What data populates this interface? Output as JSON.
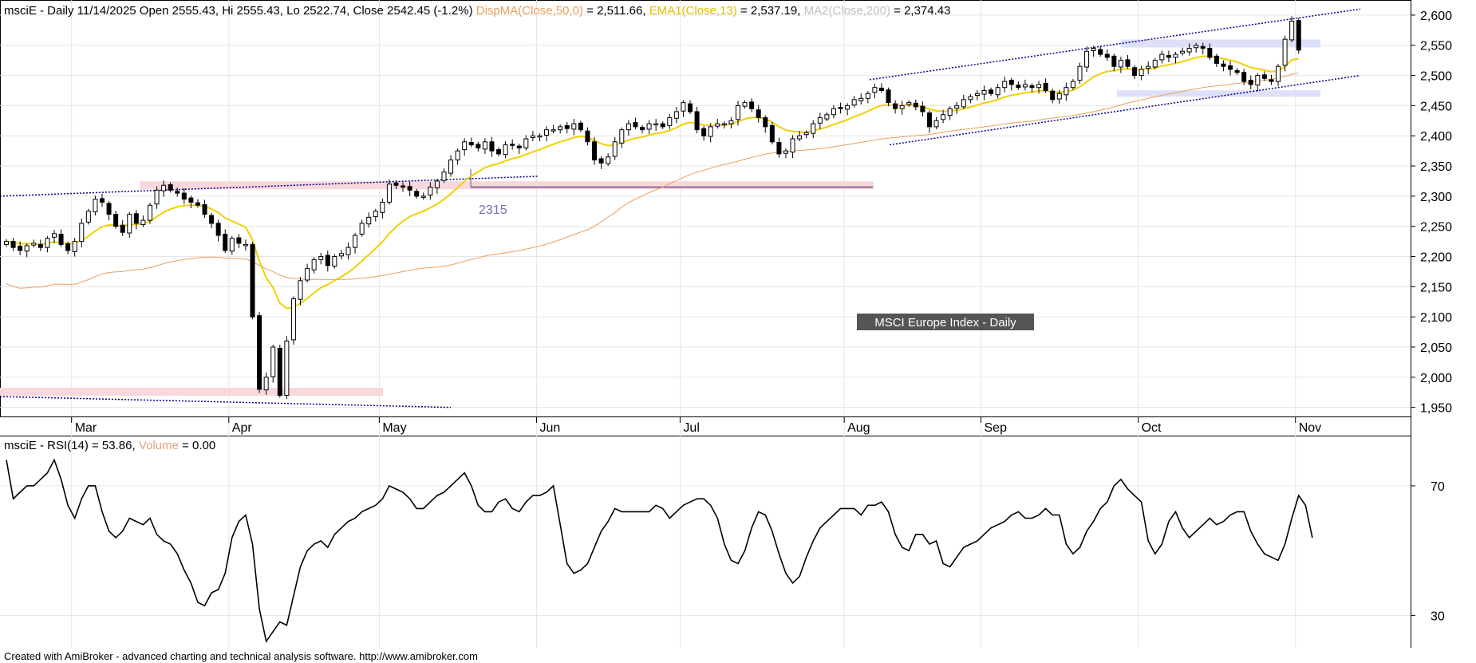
{
  "header": {
    "prefix": "msciE - Daily 11/14/2025 Open 2555.43, Hi 2555.43, Lo 2522.74, Close 2542.45 (-1.2%)",
    "ind1_name": "DispMA(Close,50,0)",
    "ind1_value": " = 2,511.66,",
    "ind2_name": "EMA1(Close,13)",
    "ind2_value": " = 2,537.19,",
    "ind3_name": "MA2(Close,200)",
    "ind3_value": " = 2,374.43"
  },
  "rsi_header": {
    "prefix": "msciE - RSI(14) = 53.86,",
    "vol_name": "Volume",
    "vol_value": " = 0.00"
  },
  "chart_label": "MSCI Europe Index - Daily",
  "annotation": "2315",
  "footer": "Created with AmiBroker - advanced charting and technical analysis software. http://www.amibroker.com",
  "colors": {
    "ema13": "#f0d000",
    "ma50": "#e8a060",
    "ma200": "#c8c8c8",
    "volume": "#e8a080",
    "channel": "#00008b",
    "support_pink": "#f8d8dc",
    "support_blue": "#dde0f8",
    "line_2315": "#6a4a8a"
  },
  "chart_data": {
    "price_panel": {
      "type": "candlestick",
      "ylim": [
        1935,
        2625
      ],
      "yticks": [
        1950,
        2000,
        2050,
        2100,
        2150,
        2200,
        2250,
        2300,
        2350,
        2400,
        2450,
        2500,
        2550,
        2600
      ],
      "ytick_labels": [
        "1,950",
        "2,000",
        "2,050",
        "2,100",
        "2,150",
        "2,200",
        "2,250",
        "2,300",
        "2,350",
        "2,400",
        "2,450",
        "2,500",
        "2,550",
        "2,600"
      ],
      "months": [
        "Mar",
        "Apr",
        "May",
        "Jun",
        "Jul",
        "Aug",
        "Sep",
        "Oct",
        "Nov"
      ],
      "month_start_index": [
        10,
        33,
        55,
        78,
        99,
        123,
        143,
        166,
        189
      ],
      "closes": [
        2225,
        2215,
        2210,
        2218,
        2222,
        2215,
        2230,
        2238,
        2220,
        2210,
        2225,
        2255,
        2275,
        2295,
        2290,
        2270,
        2250,
        2240,
        2270,
        2255,
        2260,
        2285,
        2310,
        2318,
        2310,
        2305,
        2295,
        2290,
        2285,
        2270,
        2255,
        2235,
        2210,
        2230,
        2222,
        2220,
        2100,
        1980,
        2000,
        2050,
        1970,
        2060,
        2130,
        2160,
        2180,
        2195,
        2200,
        2185,
        2200,
        2205,
        2215,
        2235,
        2255,
        2265,
        2275,
        2290,
        2320,
        2318,
        2315,
        2310,
        2300,
        2300,
        2315,
        2325,
        2340,
        2360,
        2375,
        2390,
        2385,
        2380,
        2390,
        2375,
        2370,
        2385,
        2385,
        2380,
        2395,
        2400,
        2400,
        2410,
        2410,
        2415,
        2412,
        2420,
        2410,
        2390,
        2360,
        2355,
        2365,
        2390,
        2410,
        2420,
        2415,
        2410,
        2420,
        2420,
        2415,
        2430,
        2440,
        2455,
        2440,
        2410,
        2400,
        2415,
        2420,
        2420,
        2425,
        2450,
        2455,
        2445,
        2430,
        2415,
        2390,
        2370,
        2375,
        2395,
        2400,
        2405,
        2420,
        2430,
        2435,
        2445,
        2445,
        2450,
        2460,
        2462,
        2470,
        2480,
        2475,
        2455,
        2445,
        2450,
        2455,
        2448,
        2440,
        2415,
        2425,
        2435,
        2445,
        2450,
        2460,
        2465,
        2470,
        2475,
        2470,
        2480,
        2490,
        2485,
        2480,
        2485,
        2480,
        2485,
        2475,
        2460,
        2470,
        2480,
        2490,
        2515,
        2540,
        2545,
        2535,
        2530,
        2515,
        2525,
        2515,
        2500,
        2510,
        2515,
        2525,
        2535,
        2530,
        2535,
        2540,
        2545,
        2550,
        2545,
        2530,
        2520,
        2515,
        2510,
        2505,
        2490,
        2485,
        2500,
        2495,
        2490,
        2515,
        2560,
        2590,
        2542
      ],
      "series": [
        {
          "name": "DispMA(Close,50,0)",
          "last": 2511.66
        },
        {
          "name": "EMA1(Close,13)",
          "last": 2537.19
        },
        {
          "name": "MA2(Close,200)",
          "last": 2374.43
        }
      ],
      "horizontal_line": {
        "value": 2315,
        "label": "2315"
      },
      "grid": true
    },
    "rsi_panel": {
      "type": "line",
      "series": [
        {
          "name": "RSI(14)",
          "last": 53.86
        }
      ],
      "ylim": [
        20,
        85
      ],
      "yticks": [
        30,
        70
      ],
      "values": [
        78,
        66,
        68,
        70,
        70,
        72,
        74,
        78,
        72,
        64,
        60,
        66,
        70,
        70,
        62,
        56,
        54,
        56,
        60,
        59,
        58,
        60,
        55,
        53,
        52,
        49,
        44,
        40,
        34,
        33,
        37,
        38,
        43,
        54,
        59,
        61,
        52,
        32,
        22,
        25,
        28,
        27,
        36,
        45,
        50,
        52,
        53,
        51,
        55,
        57,
        59,
        60,
        62,
        63,
        64,
        66,
        70,
        69,
        68,
        66,
        63,
        63,
        65,
        67,
        68,
        70,
        72,
        74,
        70,
        64,
        62,
        62,
        65,
        66,
        63,
        62,
        65,
        67,
        67,
        68,
        70,
        58,
        46,
        43,
        44,
        46,
        51,
        56,
        59,
        63,
        62,
        62,
        62,
        62,
        62,
        64,
        63,
        60,
        62,
        64,
        65,
        66,
        66,
        64,
        60,
        52,
        47,
        46,
        50,
        57,
        62,
        61,
        56,
        49,
        43,
        40,
        42,
        48,
        53,
        57,
        59,
        61,
        63,
        63,
        63,
        61,
        64,
        64,
        65,
        62,
        55,
        51,
        50,
        55,
        55,
        52,
        53,
        46,
        45,
        48,
        51,
        52,
        53,
        55,
        57,
        58,
        59,
        61,
        62,
        60,
        60,
        61,
        63,
        61,
        61,
        52,
        49,
        51,
        56,
        59,
        63,
        65,
        70,
        72,
        69,
        67,
        65,
        53,
        49,
        52,
        59,
        62,
        57,
        54,
        56,
        58,
        60,
        58,
        59,
        61,
        62,
        62,
        56,
        52,
        49,
        48,
        47,
        52,
        60,
        67,
        64,
        54
      ]
    }
  }
}
